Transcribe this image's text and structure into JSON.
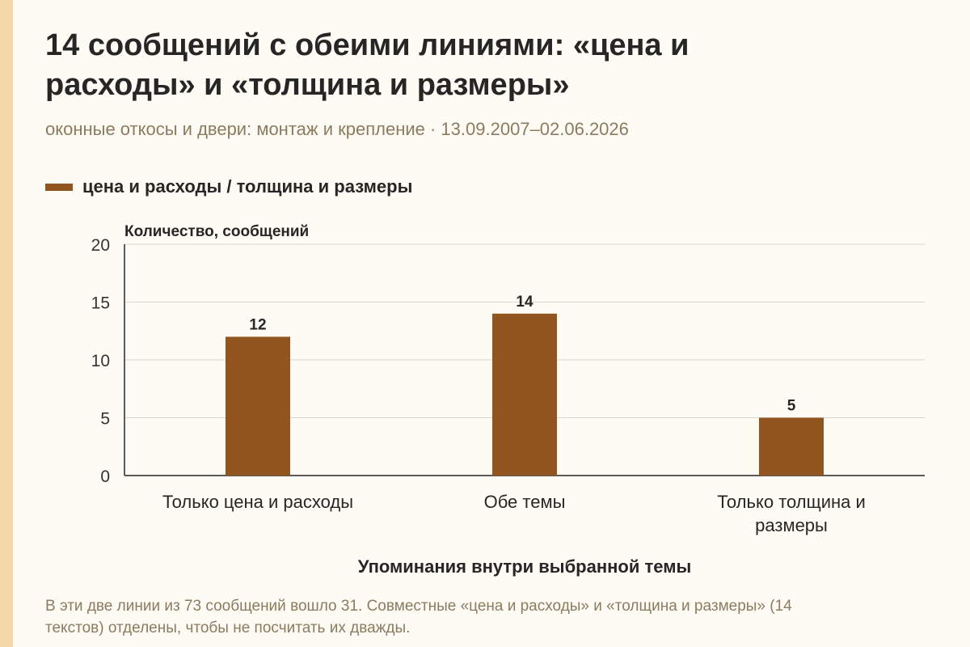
{
  "title": "14 сообщений с обеими линиями: «цена и расходы» и «толщина и размеры»",
  "subtitle": "оконные откосы и двери: монтаж и крепление · 13.09.2007–02.06.2026",
  "legend": {
    "label": "цена и расходы / толщина и размеры"
  },
  "note": "В эти две линии из 73 сообщений вошло 31. Совместные «цена и расходы» и «толщина и размеры» (14 текстов) отделены, чтобы не посчитать их дважды.",
  "colors": {
    "bar": "#93551f",
    "accent_stripe": "#f5d8a8",
    "grid": "#d9d6cc",
    "muted_text": "#8b7b60"
  },
  "chart_data": {
    "type": "bar",
    "categories": [
      "Только цена и расходы",
      "Обе темы",
      "Только толщина и размеры"
    ],
    "series": [
      {
        "name": "цена и расходы / толщина и размеры",
        "values": [
          12,
          14,
          5
        ]
      }
    ],
    "xlabel": "Упоминания внутри выбранной темы",
    "ylabel": "Количество, сообщений",
    "yticks": [
      0,
      5,
      10,
      15,
      20
    ],
    "ylim": [
      0,
      20
    ],
    "data_labels": true,
    "grid": true,
    "legend_position": "top-left"
  }
}
